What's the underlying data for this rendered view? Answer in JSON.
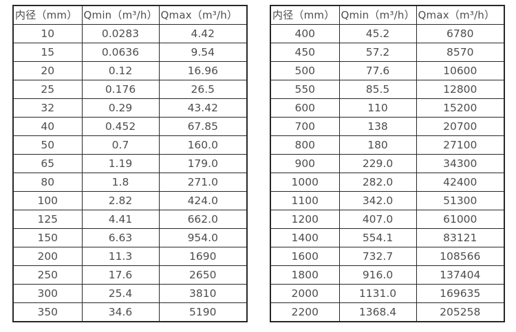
{
  "colors": {
    "background": "#ffffff",
    "border": "#262626",
    "text": "#4d4d4d"
  },
  "chart_data": [
    {
      "type": "table",
      "name": "flow-rate-table-small-diameters",
      "columns": [
        "内径（mm）",
        "Qmin（m³/h）",
        "Qmax（m³/h）"
      ],
      "rows": [
        [
          "10",
          "0.0283",
          "4.42"
        ],
        [
          "15",
          "0.0636",
          "9.54"
        ],
        [
          "20",
          "0.12",
          "16.96"
        ],
        [
          "25",
          "0.176",
          "26.5"
        ],
        [
          "32",
          "0.29",
          "43.42"
        ],
        [
          "40",
          "0.452",
          "67.85"
        ],
        [
          "50",
          "0.7",
          "160.0"
        ],
        [
          "65",
          "1.19",
          "179.0"
        ],
        [
          "80",
          "1.8",
          "271.0"
        ],
        [
          "100",
          "2.82",
          "424.0"
        ],
        [
          "125",
          "4.41",
          "662.0"
        ],
        [
          "150",
          "6.63",
          "954.0"
        ],
        [
          "200",
          "11.3",
          "1690"
        ],
        [
          "250",
          "17.6",
          "2650"
        ],
        [
          "300",
          "25.4",
          "3810"
        ],
        [
          "350",
          "34.6",
          "5190"
        ]
      ]
    },
    {
      "type": "table",
      "name": "flow-rate-table-large-diameters",
      "columns": [
        "内径（mm）",
        "Qmin（m³/h）",
        "Qmax（m³/h）"
      ],
      "rows": [
        [
          "400",
          "45.2",
          "6780"
        ],
        [
          "450",
          "57.2",
          "8570"
        ],
        [
          "500",
          "77.6",
          "10600"
        ],
        [
          "550",
          "85.5",
          "12800"
        ],
        [
          "600",
          "110",
          "15200"
        ],
        [
          "700",
          "138",
          "20700"
        ],
        [
          "800",
          "180",
          "27100"
        ],
        [
          "900",
          "229.0",
          "34300"
        ],
        [
          "1000",
          "282.0",
          "42400"
        ],
        [
          "1100",
          "342.0",
          "51300"
        ],
        [
          "1200",
          "407.0",
          "61000"
        ],
        [
          "1400",
          "554.1",
          "83121"
        ],
        [
          "1600",
          "732.7",
          "108566"
        ],
        [
          "1800",
          "916.0",
          "137404"
        ],
        [
          "2000",
          "1131.0",
          "169635"
        ],
        [
          "2200",
          "1368.4",
          "205258"
        ]
      ]
    }
  ]
}
